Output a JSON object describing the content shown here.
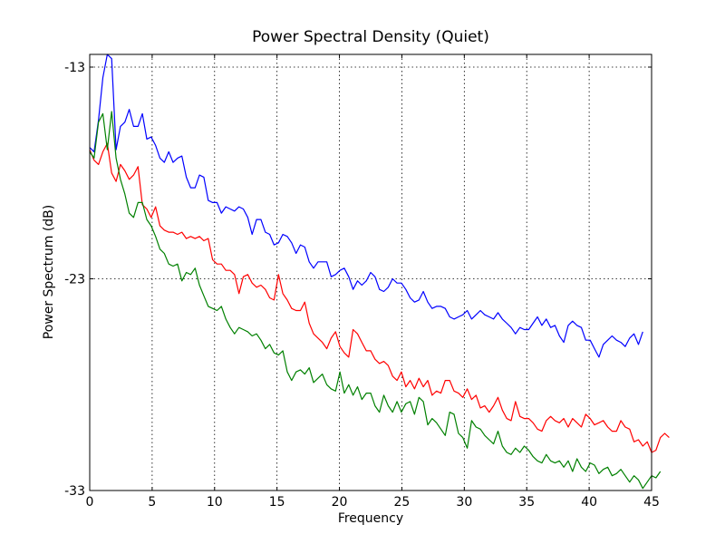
{
  "chart_data": {
    "type": "line",
    "title": "Power Spectral Density (Quiet)",
    "xlabel": "Frequency",
    "ylabel": "Power Spectrum (dB)",
    "xlim": [
      0,
      45
    ],
    "ylim": [
      -33,
      -12.4
    ],
    "xticks": [
      0,
      5,
      10,
      15,
      20,
      25,
      30,
      35,
      40,
      45
    ],
    "yticks": [
      -13,
      -23,
      -33
    ],
    "grid": true,
    "x_start": 0,
    "x_step": 0.3515625,
    "series": [
      {
        "color": "#0000ff",
        "values": [
          -16.8,
          -17.0,
          -15.5,
          -13.5,
          -12.4,
          -12.6,
          -16.9,
          -15.8,
          -15.6,
          -15.0,
          -15.8,
          -15.8,
          -15.2,
          -16.4,
          -16.3,
          -16.7,
          -17.3,
          -17.5,
          -17.0,
          -17.5,
          -17.3,
          -17.2,
          -18.2,
          -18.7,
          -18.7,
          -18.1,
          -18.2,
          -19.3,
          -19.4,
          -19.4,
          -19.9,
          -19.6,
          -19.7,
          -19.8,
          -19.6,
          -19.7,
          -20.1,
          -20.9,
          -20.2,
          -20.2,
          -20.8,
          -20.9,
          -21.4,
          -21.3,
          -20.9,
          -21.0,
          -21.3,
          -21.8,
          -21.4,
          -21.5,
          -22.2,
          -22.5,
          -22.2,
          -22.2,
          -22.2,
          -22.9,
          -22.8,
          -22.6,
          -22.5,
          -22.9,
          -23.5,
          -23.1,
          -23.3,
          -23.1,
          -22.7,
          -22.9,
          -23.5,
          -23.6,
          -23.4,
          -23.0,
          -23.2,
          -23.2,
          -23.5,
          -23.9,
          -24.1,
          -24.0,
          -23.6,
          -24.1,
          -24.4,
          -24.3,
          -24.3,
          -24.4,
          -24.8,
          -24.9,
          -24.8,
          -24.7,
          -24.5,
          -24.9,
          -24.7,
          -24.5,
          -24.7,
          -24.8,
          -24.9,
          -24.6,
          -24.9,
          -25.1,
          -25.3,
          -25.6,
          -25.3,
          -25.4,
          -25.4,
          -25.1,
          -24.8,
          -25.2,
          -24.9,
          -25.3,
          -25.2,
          -25.7,
          -26.0,
          -25.2,
          -25.0,
          -25.2,
          -25.3,
          -25.9,
          -25.9,
          -26.3,
          -26.7,
          -26.1,
          -25.9,
          -25.7,
          -25.9,
          -26.0,
          -26.2,
          -25.8,
          -25.6,
          -26.1,
          -25.5
        ]
      },
      {
        "color": "#ff0000",
        "values": [
          -16.9,
          -17.4,
          -17.6,
          -17.0,
          -16.6,
          -18.0,
          -18.4,
          -17.6,
          -17.9,
          -18.3,
          -18.1,
          -17.7,
          -19.5,
          -19.7,
          -20.1,
          -19.6,
          -20.5,
          -20.7,
          -20.8,
          -20.8,
          -20.9,
          -20.8,
          -21.1,
          -21.0,
          -21.1,
          -21.0,
          -21.2,
          -21.1,
          -22.1,
          -22.3,
          -22.3,
          -22.6,
          -22.6,
          -22.8,
          -23.7,
          -22.9,
          -22.8,
          -23.2,
          -23.4,
          -23.3,
          -23.5,
          -23.9,
          -24.0,
          -22.8,
          -23.7,
          -24.0,
          -24.4,
          -24.5,
          -24.5,
          -24.1,
          -25.1,
          -25.6,
          -25.8,
          -26.0,
          -26.3,
          -25.8,
          -25.5,
          -26.2,
          -26.5,
          -26.7,
          -25.4,
          -25.6,
          -26.0,
          -26.4,
          -26.4,
          -26.8,
          -27.0,
          -26.9,
          -27.1,
          -27.6,
          -27.8,
          -27.4,
          -28.1,
          -27.8,
          -28.2,
          -27.7,
          -28.1,
          -27.8,
          -28.5,
          -28.3,
          -28.4,
          -27.8,
          -27.8,
          -28.3,
          -28.4,
          -28.6,
          -28.2,
          -28.7,
          -28.5,
          -29.1,
          -29.0,
          -29.3,
          -29.0,
          -28.6,
          -29.2,
          -29.6,
          -29.7,
          -28.8,
          -29.5,
          -29.6,
          -29.6,
          -29.8,
          -30.1,
          -30.2,
          -29.7,
          -29.5,
          -29.7,
          -29.8,
          -29.6,
          -30.0,
          -29.6,
          -29.8,
          -30.0,
          -29.4,
          -29.6,
          -29.9,
          -29.8,
          -29.7,
          -30.0,
          -30.2,
          -30.2,
          -29.7,
          -30.0,
          -30.1,
          -30.7,
          -30.6,
          -30.9,
          -30.7,
          -31.2,
          -31.1,
          -30.5,
          -30.3,
          -30.5
        ]
      },
      {
        "color": "#008000",
        "values": [
          -17.0,
          -17.3,
          -15.6,
          -15.2,
          -16.9,
          -15.1,
          -17.3,
          -18.3,
          -19.0,
          -19.9,
          -20.1,
          -19.4,
          -19.4,
          -20.2,
          -20.5,
          -21.0,
          -21.6,
          -21.8,
          -22.3,
          -22.4,
          -22.3,
          -23.1,
          -22.7,
          -22.8,
          -22.5,
          -23.3,
          -23.8,
          -24.3,
          -24.4,
          -24.5,
          -24.3,
          -24.9,
          -25.3,
          -25.6,
          -25.3,
          -25.4,
          -25.5,
          -25.7,
          -25.6,
          -25.9,
          -26.3,
          -26.1,
          -26.5,
          -26.6,
          -26.4,
          -27.4,
          -27.8,
          -27.4,
          -27.3,
          -27.5,
          -27.2,
          -27.9,
          -27.7,
          -27.5,
          -28.0,
          -28.2,
          -28.3,
          -27.4,
          -28.4,
          -28.0,
          -28.5,
          -28.1,
          -28.7,
          -28.4,
          -28.4,
          -29.0,
          -29.3,
          -28.5,
          -29.0,
          -29.3,
          -28.8,
          -29.3,
          -28.9,
          -28.8,
          -29.4,
          -28.6,
          -28.8,
          -29.9,
          -29.6,
          -29.8,
          -30.1,
          -30.4,
          -29.3,
          -29.4,
          -30.3,
          -30.5,
          -31.0,
          -29.7,
          -30.0,
          -30.1,
          -30.4,
          -30.6,
          -30.8,
          -30.2,
          -30.9,
          -31.2,
          -31.3,
          -31.0,
          -31.2,
          -30.9,
          -31.1,
          -31.4,
          -31.6,
          -31.7,
          -31.3,
          -31.6,
          -31.7,
          -31.6,
          -31.9,
          -31.6,
          -32.1,
          -31.5,
          -31.9,
          -32.1,
          -31.7,
          -31.8,
          -32.2,
          -32.0,
          -31.9,
          -32.3,
          -32.2,
          -32.0,
          -32.3,
          -32.6,
          -32.3,
          -32.5,
          -32.9,
          -32.6,
          -32.3,
          -32.4,
          -32.1
        ]
      }
    ]
  }
}
